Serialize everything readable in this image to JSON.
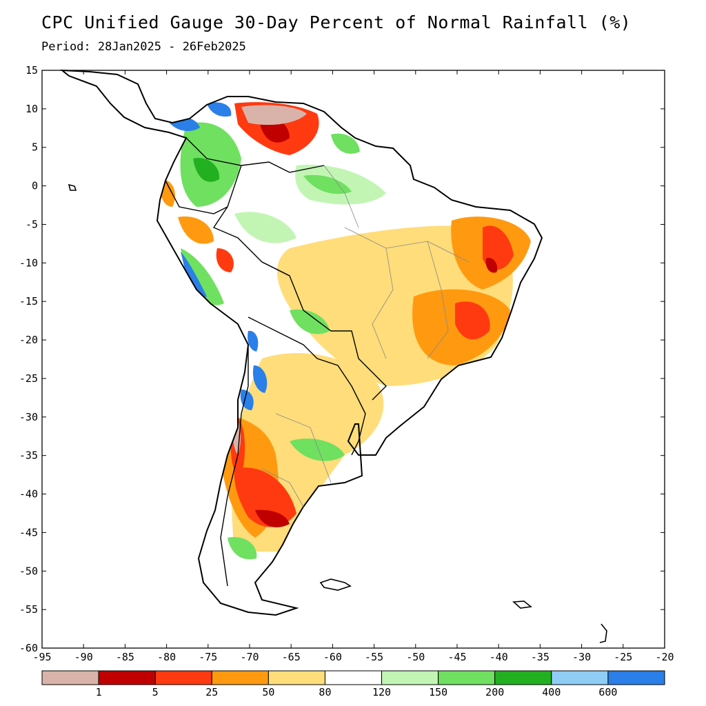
{
  "title": "CPC Unified Gauge 30-Day Percent of Normal Rainfall (%)",
  "subtitle": "Period: 28Jan2025 - 26Feb2025",
  "axes": {
    "lon_range": [
      -95,
      -20
    ],
    "lat_range": [
      -60,
      15
    ],
    "lon_ticks": [
      "-95",
      "-90",
      "-85",
      "-80",
      "-75",
      "-70",
      "-65",
      "-60",
      "-55",
      "-50",
      "-45",
      "-40",
      "-35",
      "-30",
      "-25",
      "-20"
    ],
    "lat_ticks": [
      "15",
      "10",
      "5",
      "0",
      "-5",
      "-10",
      "-15",
      "-20",
      "-25",
      "-30",
      "-35",
      "-40",
      "-45",
      "-50",
      "-55",
      "-60"
    ]
  },
  "colors": {
    "ocean": "#ffffff",
    "land_normal": "#ffffff",
    "coast": "#000000",
    "border": "#888888"
  },
  "legend": {
    "bins": [
      {
        "color": "#d9b3aa"
      },
      {
        "color": "#c00000"
      },
      {
        "color": "#ff3a10"
      },
      {
        "color": "#ff9a10"
      },
      {
        "color": "#ffdd7a"
      },
      {
        "color": "#ffffff"
      },
      {
        "color": "#c2f5b4"
      },
      {
        "color": "#6fe060"
      },
      {
        "color": "#22b020"
      },
      {
        "color": "#8fcdf5"
      },
      {
        "color": "#2a7fe8"
      }
    ],
    "labels": [
      "1",
      "5",
      "25",
      "50",
      "80",
      "120",
      "150",
      "200",
      "400",
      "600"
    ]
  }
}
